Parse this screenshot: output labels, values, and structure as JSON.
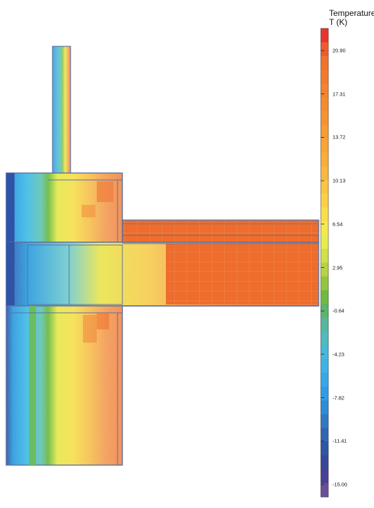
{
  "legend": {
    "title_line1": "Temperature",
    "title_line2": "T (K)",
    "ticks": [
      "20.90",
      "17.31",
      "13.72",
      "10.13",
      "6.54",
      "2.95",
      "-0.64",
      "-4.23",
      "-7.82",
      "-11.41",
      "-15.00"
    ]
  },
  "colors": {
    "cold": "#2c52a3",
    "cool": "#3bb7e8",
    "neutral": "#f4ef5a",
    "warm": "#f39a3c",
    "hot": "#ee6a2a",
    "edge": "#5a6fa0"
  },
  "colorbar_bands": [
    "#e8362c",
    "#ef5b2e",
    "#f2712b",
    "#f47a2c",
    "#f5822d",
    "#f68a2f",
    "#f69231",
    "#f79b33",
    "#f8a436",
    "#f9ae39",
    "#fab83d",
    "#fbc441",
    "#fbd046",
    "#fbdc4b",
    "#f6e84f",
    "#e6ec4f",
    "#cfe04a",
    "#b5d345",
    "#93c63f",
    "#6fba43",
    "#5bb56a",
    "#57b79a",
    "#51b9c1",
    "#46b8dc",
    "#3eb2e6",
    "#36a8e8",
    "#2f9ce6",
    "#2e8bd8",
    "#2f78c5",
    "#2f66b3",
    "#2f56a3",
    "#37479a",
    "#4a3f95",
    "#6a4f9c"
  ]
}
